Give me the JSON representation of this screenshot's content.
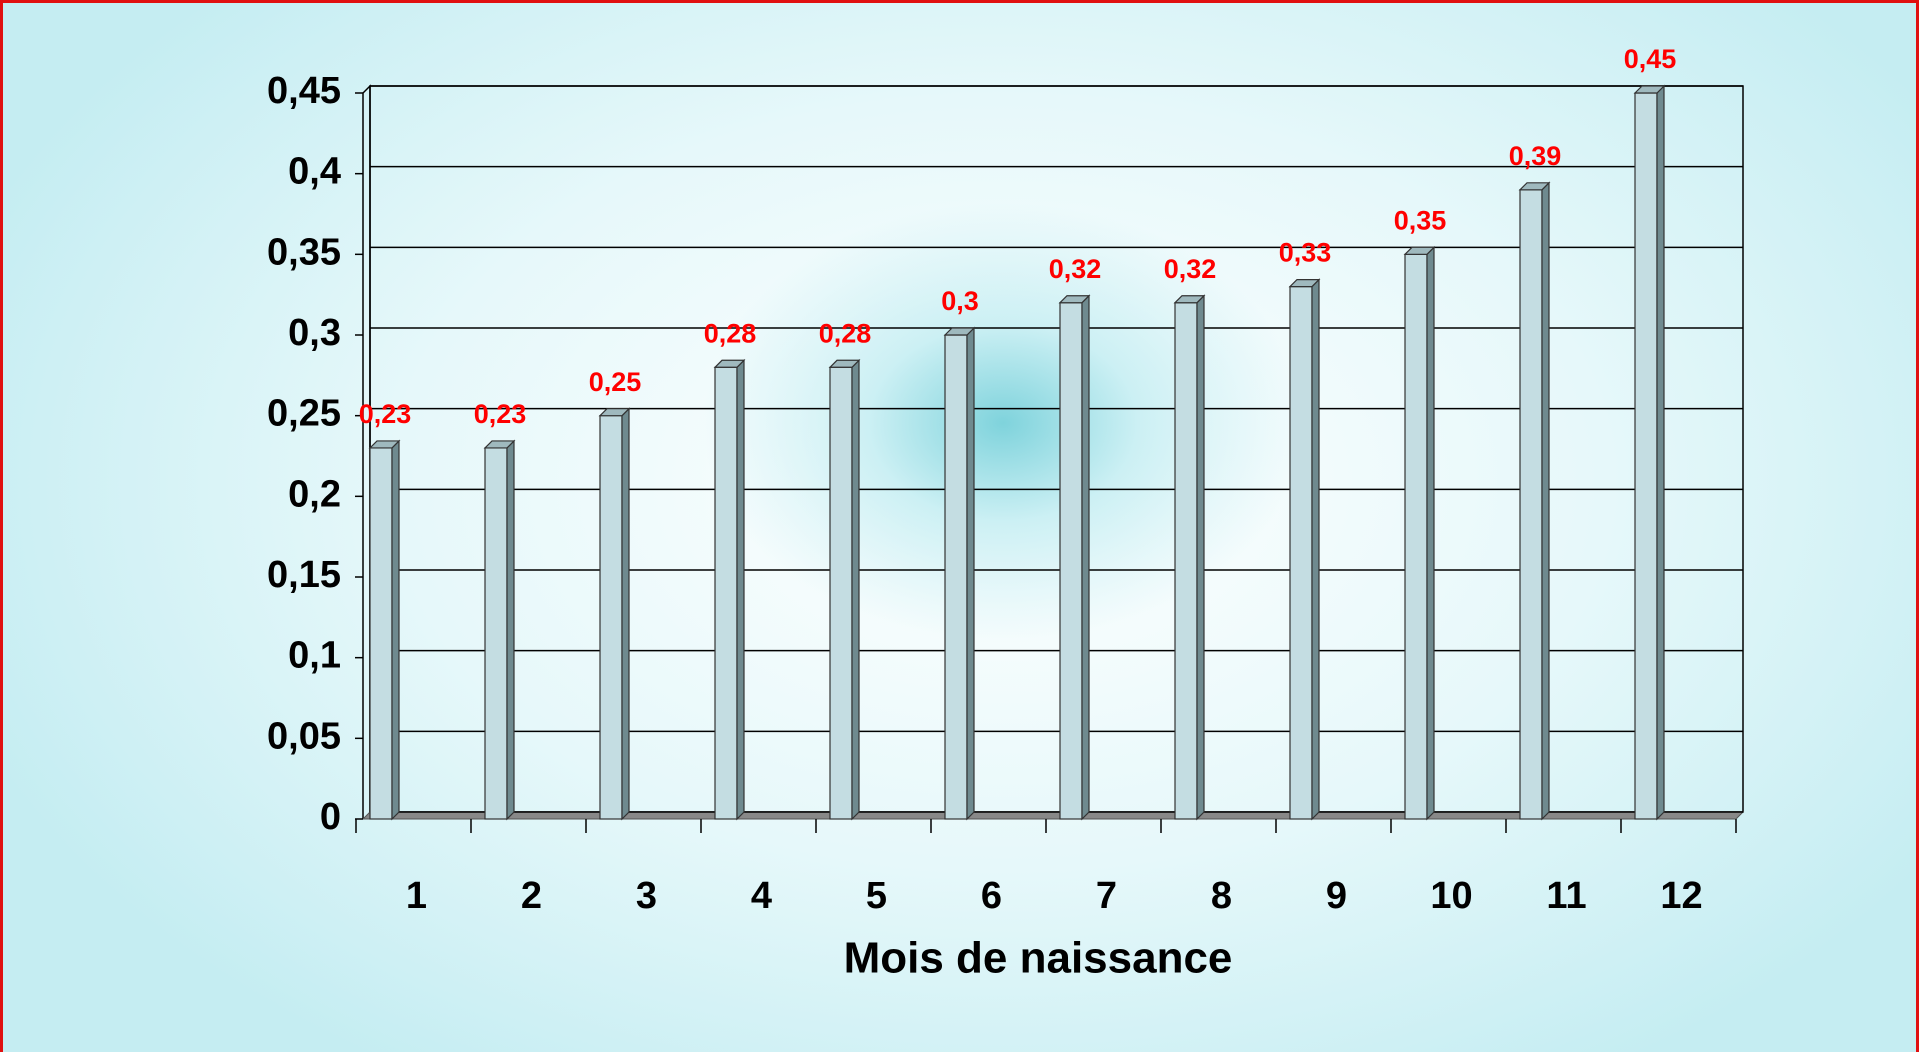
{
  "chart_data": {
    "type": "bar",
    "x_label": "Mois de naissance",
    "categories": [
      "1",
      "2",
      "3",
      "4",
      "5",
      "6",
      "7",
      "8",
      "9",
      "10",
      "11",
      "12"
    ],
    "values": [
      0.23,
      0.23,
      0.25,
      0.28,
      0.28,
      0.3,
      0.32,
      0.32,
      0.33,
      0.35,
      0.39,
      0.45
    ],
    "value_labels": [
      "0,23",
      "0,23",
      "0,25",
      "0,28",
      "0,28",
      "0,3",
      "0,32",
      "0,32",
      "0,33",
      "0,35",
      "0,39",
      "0,45"
    ],
    "color": "#c4dde2",
    "label_color": "#ff0000",
    "ylim": [
      0,
      0.45
    ],
    "yticks": [
      0,
      {
        "value": 0.05,
        "label": "0,05"
      },
      {
        "value": 0.1,
        "label": "0,1"
      },
      {
        "value": 0.15,
        "label": "0,15"
      },
      {
        "value": 0.2,
        "label": "0,2"
      },
      {
        "value": 0.25,
        "label": "0,25"
      },
      {
        "value": 0.3,
        "label": "0,3"
      },
      {
        "value": 0.35,
        "label": "0,35"
      },
      {
        "value": 0.4,
        "label": "0,4"
      },
      {
        "value": 0.45,
        "label": "0,45"
      }
    ],
    "grid": true
  }
}
